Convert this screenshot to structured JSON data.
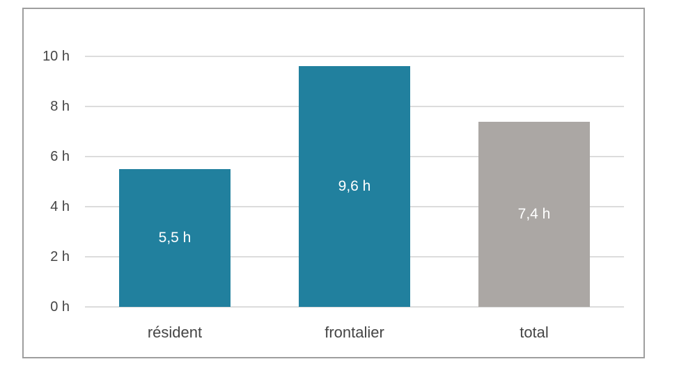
{
  "chart_data": {
    "type": "bar",
    "title": "",
    "xlabel": "",
    "ylabel": "",
    "categories": [
      "résident",
      "frontalier",
      "total"
    ],
    "values": [
      5.5,
      9.6,
      7.4
    ],
    "value_labels": [
      "5,5 h",
      "9,6 h",
      "7,4 h"
    ],
    "bar_colors": [
      "#21809E",
      "#21809E",
      "#ABA7A4"
    ],
    "ylim": [
      0,
      10
    ],
    "ytick_step": 2,
    "ytick_labels": [
      "0 h",
      "2 h",
      "4 h",
      "6 h",
      "8 h",
      "10 h"
    ],
    "grid": true,
    "legend": false,
    "value_label_position": "center-inside",
    "unit": "h"
  },
  "colors": {
    "accent_teal": "#21809E",
    "neutral_gray_bar": "#ABA7A4",
    "gridline": "#DCDCDC",
    "frame_border": "#9E9E9E",
    "axis_text": "#454545",
    "bar_label_text": "#FFFFFF",
    "background": "#FFFFFF"
  }
}
